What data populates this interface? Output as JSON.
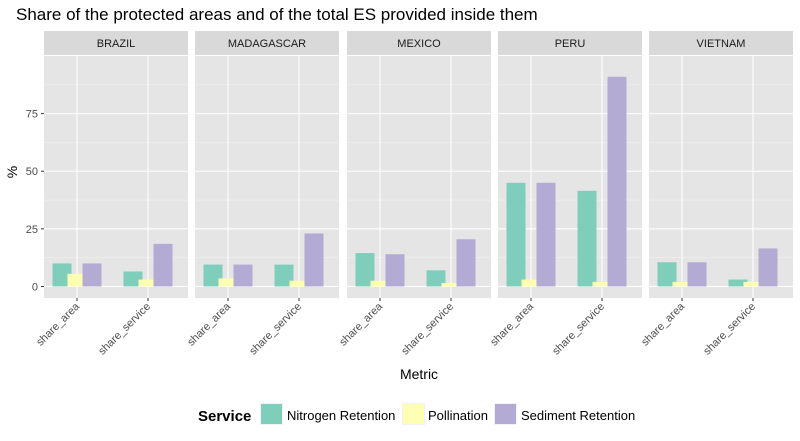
{
  "chart_data": {
    "type": "bar",
    "title": "Share of the protected areas and of the total ES provided inside them",
    "xlabel": "Metric",
    "ylabel": "%",
    "ylim": [
      -5,
      100
    ],
    "yticks": [
      0,
      25,
      50,
      75
    ],
    "grid": true,
    "legend_position": "bottom",
    "categories": [
      "share_area",
      "share_service"
    ],
    "legend_title": "Service",
    "series_colors": {
      "Nitrogen Retention": "#7fcdbb",
      "Pollination": "#ffffb3",
      "Sediment Retention": "#b3abd4"
    },
    "facets": [
      {
        "name": "BRAZIL",
        "series": [
          {
            "name": "Nitrogen Retention",
            "values": [
              10,
              6.5
            ]
          },
          {
            "name": "Pollination",
            "values": [
              5.5,
              3
            ]
          },
          {
            "name": "Sediment Retention",
            "values": [
              10,
              18.5
            ]
          }
        ]
      },
      {
        "name": "MADAGASCAR",
        "series": [
          {
            "name": "Nitrogen Retention",
            "values": [
              9.5,
              9.5
            ]
          },
          {
            "name": "Pollination",
            "values": [
              3.5,
              2.5
            ]
          },
          {
            "name": "Sediment Retention",
            "values": [
              9.5,
              23
            ]
          }
        ]
      },
      {
        "name": "MEXICO",
        "series": [
          {
            "name": "Nitrogen Retention",
            "values": [
              14.5,
              7
            ]
          },
          {
            "name": "Pollination",
            "values": [
              2.5,
              1.5
            ]
          },
          {
            "name": "Sediment Retention",
            "values": [
              14,
              20.5
            ]
          }
        ]
      },
      {
        "name": "PERU",
        "series": [
          {
            "name": "Nitrogen Retention",
            "values": [
              45,
              41.5
            ]
          },
          {
            "name": "Pollination",
            "values": [
              3,
              2
            ]
          },
          {
            "name": "Sediment Retention",
            "values": [
              45,
              91
            ]
          }
        ]
      },
      {
        "name": "VIETNAM",
        "series": [
          {
            "name": "Nitrogen Retention",
            "values": [
              10.5,
              3
            ]
          },
          {
            "name": "Pollination",
            "values": [
              2,
              2
            ]
          },
          {
            "name": "Sediment Retention",
            "values": [
              10.5,
              16.5
            ]
          }
        ]
      }
    ]
  }
}
